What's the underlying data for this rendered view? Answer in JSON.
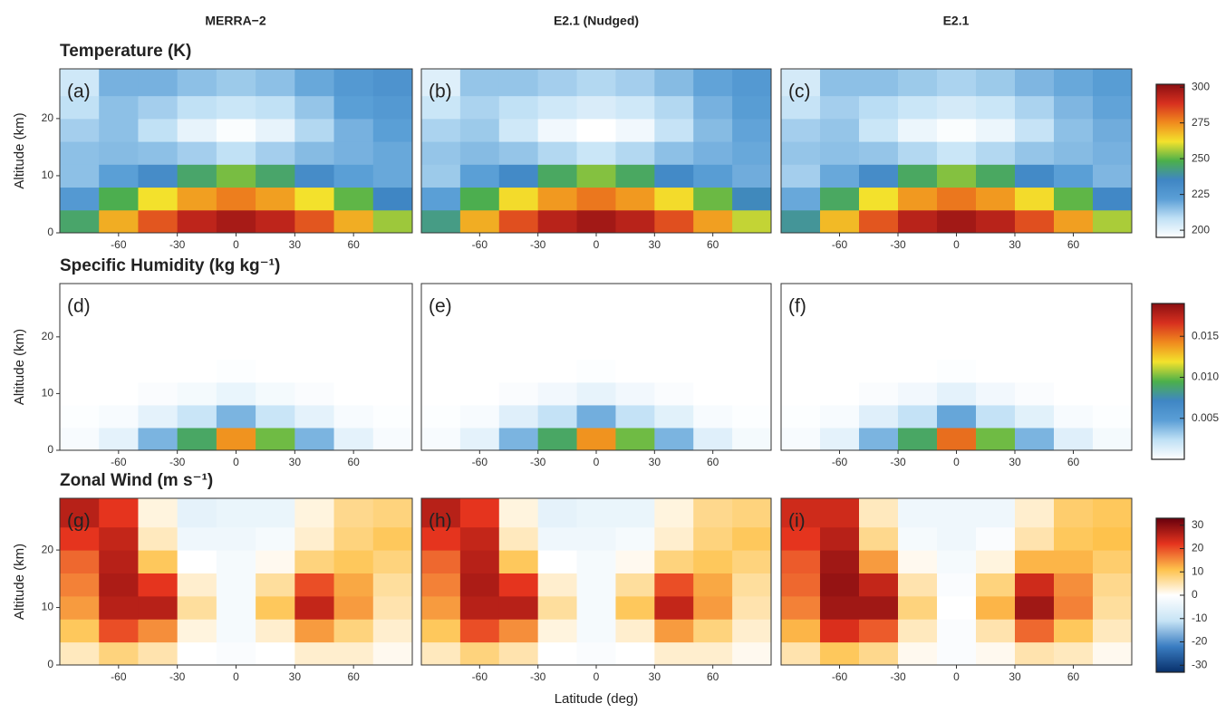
{
  "column_titles": [
    "MERRA−2",
    "E2.1 (Nudged)",
    "E2.1"
  ],
  "xlabel": "Latitude (deg)",
  "chart_data": [
    {
      "type": "heatmap",
      "title": "Temperature (K)",
      "ylabel": "Altitude (km)",
      "x": [
        -80,
        -60,
        -40,
        -20,
        0,
        20,
        40,
        60,
        80
      ],
      "y": [
        2,
        6,
        10,
        14,
        18,
        22,
        26
      ],
      "xlim": [
        -90,
        90
      ],
      "ylim": [
        0,
        28.7
      ],
      "xticks": [
        -60,
        -30,
        0,
        30,
        60
      ],
      "yticks": [
        0,
        10,
        20
      ],
      "zlim": [
        195,
        302
      ],
      "zticks": [
        200,
        225,
        250,
        275,
        300
      ],
      "colors": [
        "#ffffff",
        "#bfe0f5",
        "#5b9fd6",
        "#3f86c4",
        "#4cb04a",
        "#f3e22c",
        "#f08a1e",
        "#d7301f",
        "#8b0f12"
      ],
      "panels": [
        {
          "label": "(a)",
          "values": [
            [
              245,
              270,
              283,
              293,
              297,
              293,
              283,
              270,
              255
            ],
            [
              225,
              248,
              262,
              272,
              277,
              272,
              262,
              250,
              235
            ],
            [
              215,
              222,
              232,
              245,
              252,
              245,
              232,
              222,
              220
            ],
            [
              215,
              216,
              215,
              212,
              208,
              212,
              216,
              218,
              220
            ],
            [
              212,
              215,
              208,
              200,
              196,
              200,
              210,
              218,
              222
            ],
            [
              208,
              215,
              212,
              208,
              206,
              208,
              214,
              222,
              225
            ],
            [
              205,
              218,
              218,
              215,
              213,
              215,
              220,
              225,
              228
            ]
          ]
        },
        {
          "label": "(b)",
          "values": [
            [
              242,
              270,
              284,
              294,
              298,
              294,
              284,
              272,
              258
            ],
            [
              222,
              248,
              263,
              273,
              278,
              273,
              263,
              251,
              236
            ],
            [
              213,
              222,
              233,
              246,
              253,
              246,
              233,
              223,
              219
            ],
            [
              214,
              216,
              214,
              210,
              206,
              210,
              215,
              218,
              220
            ],
            [
              211,
              213,
              205,
              198,
              195,
              198,
              207,
              216,
              221
            ],
            [
              206,
              211,
              208,
              205,
              203,
              205,
              210,
              218,
              223
            ],
            [
              202,
              214,
              214,
              212,
              210,
              212,
              216,
              221,
              225
            ]
          ]
        },
        {
          "label": "(c)",
          "values": [
            [
              240,
              268,
              283,
              294,
              298,
              294,
              284,
              272,
              256
            ],
            [
              220,
              246,
              262,
              273,
              278,
              273,
              263,
              250,
              234
            ],
            [
              212,
              220,
              232,
              246,
              253,
              246,
              233,
              222,
              217
            ],
            [
              214,
              215,
              214,
              210,
              206,
              210,
              214,
              216,
              218
            ],
            [
              212,
              214,
              206,
              199,
              196,
              199,
              207,
              215,
              219
            ],
            [
              207,
              212,
              209,
              206,
              204,
              206,
              211,
              217,
              221
            ],
            [
              204,
              215,
              215,
              213,
              211,
              213,
              217,
              220,
              223
            ]
          ]
        }
      ]
    },
    {
      "type": "heatmap",
      "title": "Specific Humidity (kg kg⁻¹)",
      "ylabel": "Altitude (km)",
      "x": [
        -80,
        -60,
        -40,
        -20,
        0,
        20,
        40,
        60,
        80
      ],
      "y": [
        2,
        6,
        10,
        14,
        18,
        22,
        26
      ],
      "xlim": [
        -90,
        90
      ],
      "ylim": [
        0,
        29.4
      ],
      "xticks": [
        -60,
        -30,
        0,
        30,
        60
      ],
      "yticks": [
        0,
        10,
        20
      ],
      "zlim": [
        0,
        0.019
      ],
      "zticks": [
        0.005,
        {
          "value": 0.01,
          "label": "0.010"
        },
        0.015
      ],
      "colors": [
        "#ffffff",
        "#bfe0f5",
        "#5b9fd6",
        "#3f86c4",
        "#4cb04a",
        "#f3e22c",
        "#f08a1e",
        "#d7301f",
        "#8b0f12"
      ],
      "panels": [
        {
          "label": "(d)",
          "values": [
            [
              0.0003,
              0.001,
              0.004,
              0.009,
              0.014,
              0.01,
              0.004,
              0.001,
              0.0003
            ],
            [
              0.0001,
              0.0003,
              0.001,
              0.002,
              0.004,
              0.002,
              0.001,
              0.0003,
              0.0001
            ],
            [
              0,
              0,
              0.0002,
              0.0004,
              0.0008,
              0.0004,
              0.0002,
              0,
              0
            ],
            [
              0,
              0,
              0,
              0,
              0.0001,
              0,
              0,
              0,
              0
            ],
            [
              0,
              0,
              0,
              0,
              0,
              0,
              0,
              0,
              0
            ],
            [
              0,
              0,
              0,
              0,
              0,
              0,
              0,
              0,
              0
            ],
            [
              0,
              0,
              0,
              0,
              0,
              0,
              0,
              0,
              0
            ]
          ]
        },
        {
          "label": "(e)",
          "values": [
            [
              0.0003,
              0.001,
              0.004,
              0.009,
              0.014,
              0.01,
              0.004,
              0.0012,
              0.0004
            ],
            [
              0.0001,
              0.0003,
              0.0012,
              0.0022,
              0.0042,
              0.0022,
              0.0011,
              0.0003,
              0.0001
            ],
            [
              0,
              0,
              0.0002,
              0.0005,
              0.0009,
              0.0005,
              0.0002,
              0,
              0
            ],
            [
              0,
              0,
              0,
              0,
              0.0001,
              0,
              0,
              0,
              0
            ],
            [
              0,
              0,
              0,
              0,
              0,
              0,
              0,
              0,
              0
            ],
            [
              0,
              0,
              0,
              0,
              0,
              0,
              0,
              0,
              0
            ],
            [
              0,
              0,
              0,
              0,
              0,
              0,
              0,
              0,
              0
            ]
          ]
        },
        {
          "label": "(f)",
          "values": [
            [
              0.0003,
              0.001,
              0.004,
              0.009,
              0.015,
              0.01,
              0.004,
              0.0012,
              0.0004
            ],
            [
              0.0001,
              0.0003,
              0.0012,
              0.0022,
              0.0045,
              0.0022,
              0.0011,
              0.0003,
              0.0001
            ],
            [
              0,
              0,
              0.0002,
              0.0005,
              0.001,
              0.0005,
              0.0002,
              0,
              0
            ],
            [
              0,
              0,
              0,
              0,
              0.0001,
              0,
              0,
              0,
              0
            ],
            [
              0,
              0,
              0,
              0,
              0,
              0,
              0,
              0,
              0
            ],
            [
              0,
              0,
              0,
              0,
              0,
              0,
              0,
              0,
              0
            ],
            [
              0,
              0,
              0,
              0,
              0,
              0,
              0,
              0,
              0
            ]
          ]
        }
      ]
    },
    {
      "type": "heatmap",
      "title": "Zonal Wind (m s⁻¹)",
      "ylabel": "Altitude (km)",
      "x": [
        -80,
        -60,
        -40,
        -20,
        0,
        20,
        40,
        60,
        80
      ],
      "y": [
        2,
        6,
        10,
        14,
        18,
        22,
        26
      ],
      "xlim": [
        -90,
        90
      ],
      "ylim": [
        0,
        29
      ],
      "xticks": [
        -60,
        -30,
        0,
        30,
        60
      ],
      "yticks": [
        0,
        10,
        20
      ],
      "zlim": [
        -33,
        33
      ],
      "zticks": [
        -30,
        -20,
        -10,
        0,
        10,
        20,
        30
      ],
      "colors": [
        "#08306b",
        "#3a7dc2",
        "#c6e3f5",
        "#ffffff",
        "#fec24c",
        "#e5341e",
        "#67000d"
      ],
      "panels": [
        {
          "label": "(g)",
          "values": [
            [
              4,
              8,
              5,
              0,
              -1,
              0,
              3,
              3,
              1
            ],
            [
              10,
              20,
              15,
              2,
              -2,
              3,
              14,
              8,
              3
            ],
            [
              14,
              26,
              26,
              6,
              -2,
              10,
              25,
              14,
              5
            ],
            [
              16,
              27,
              22,
              3,
              -2,
              6,
              20,
              13,
              6
            ],
            [
              18,
              26,
              10,
              0,
              -2,
              1,
              8,
              10,
              8
            ],
            [
              22,
              25,
              4,
              -3,
              -3,
              -2,
              3,
              8,
              10
            ],
            [
              26,
              22,
              2,
              -5,
              -4,
              -4,
              2,
              7,
              8
            ]
          ]
        },
        {
          "label": "(h)",
          "values": [
            [
              4,
              8,
              5,
              0,
              -1,
              0,
              3,
              3,
              1
            ],
            [
              10,
              20,
              15,
              2,
              -2,
              3,
              14,
              8,
              3
            ],
            [
              14,
              26,
              26,
              6,
              -2,
              10,
              25,
              14,
              5
            ],
            [
              16,
              27,
              22,
              3,
              -2,
              6,
              20,
              13,
              6
            ],
            [
              18,
              26,
              10,
              0,
              -2,
              1,
              8,
              10,
              8
            ],
            [
              22,
              25,
              4,
              -3,
              -3,
              -2,
              3,
              8,
              10
            ],
            [
              26,
              22,
              2,
              -5,
              -4,
              -4,
              2,
              7,
              8
            ]
          ]
        },
        {
          "label": "(i)",
          "values": [
            [
              5,
              10,
              7,
              1,
              -1,
              1,
              5,
              4,
              1
            ],
            [
              12,
              23,
              19,
              4,
              -1,
              5,
              18,
              10,
              4
            ],
            [
              16,
              28,
              28,
              8,
              0,
              12,
              28,
              16,
              6
            ],
            [
              18,
              29,
              25,
              5,
              -1,
              8,
              24,
              15,
              7
            ],
            [
              19,
              28,
              14,
              1,
              -2,
              2,
              12,
              12,
              9
            ],
            [
              22,
              26,
              7,
              -2,
              -3,
              -1,
              5,
              10,
              11
            ],
            [
              24,
              24,
              4,
              -3,
              -3,
              -3,
              3,
              9,
              10
            ]
          ]
        }
      ]
    }
  ]
}
